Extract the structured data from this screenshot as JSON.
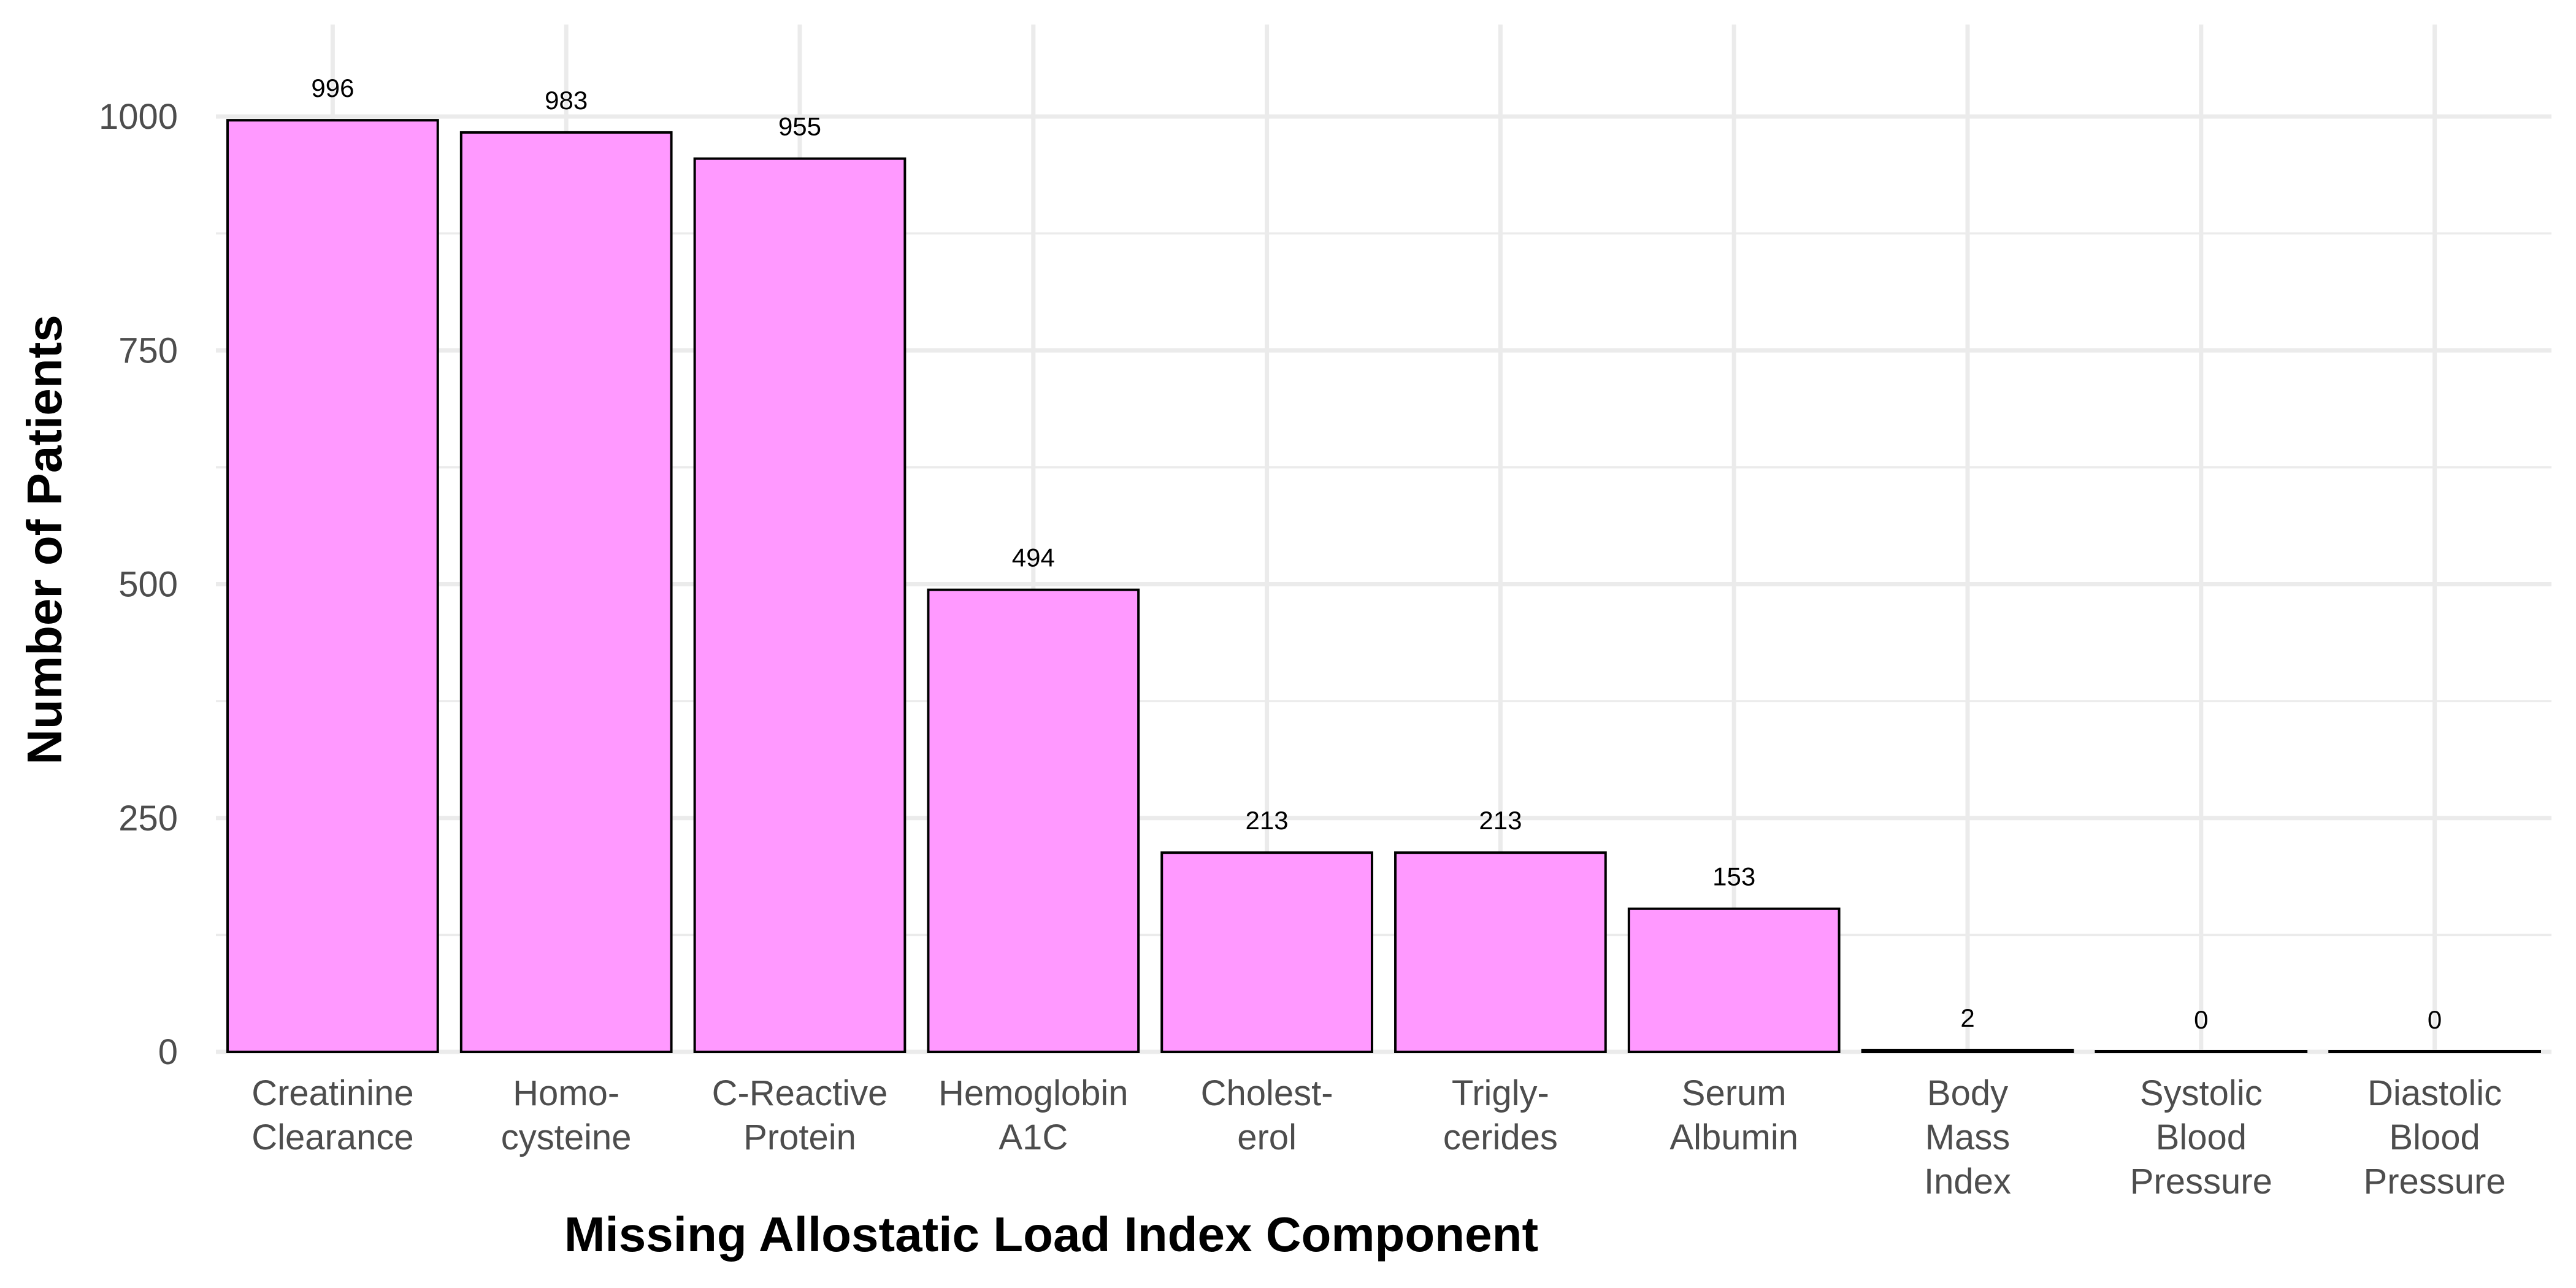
{
  "chart_data": {
    "type": "bar",
    "title": "",
    "xlabel": "Missing Allostatic Load Index Component",
    "ylabel": "Number of Patients",
    "categories": [
      [
        "Creatinine",
        "Clearance"
      ],
      [
        "Homo-",
        "cysteine"
      ],
      [
        "C-Reactive",
        "Protein"
      ],
      [
        "Hemoglobin",
        "A1C"
      ],
      [
        "Cholest-",
        "erol"
      ],
      [
        "Trigly-",
        "cerides"
      ],
      [
        "Serum",
        "Albumin"
      ],
      [
        "Body",
        "Mass",
        "Index"
      ],
      [
        "Systolic",
        "Blood",
        "Pressure"
      ],
      [
        "Diastolic",
        "Blood",
        "Pressure"
      ]
    ],
    "values": [
      996,
      983,
      955,
      494,
      213,
      213,
      153,
      2,
      0,
      0
    ],
    "ylim": [
      0,
      1050
    ],
    "yticks": [
      0,
      250,
      500,
      750,
      1000
    ],
    "grid": true,
    "bar_color": "#ff99ff",
    "bar_edge_color": "#000000"
  }
}
